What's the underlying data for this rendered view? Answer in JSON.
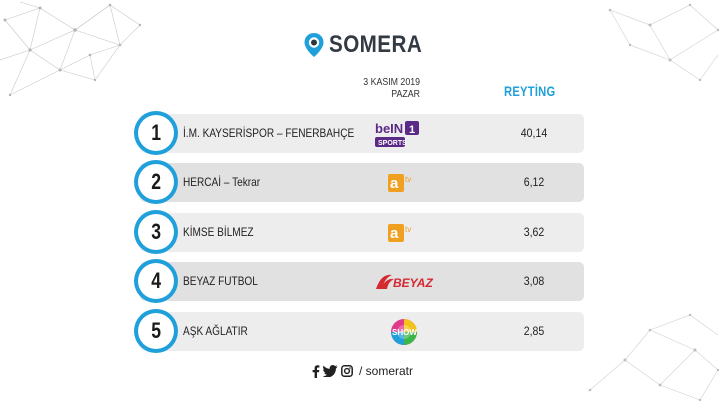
{
  "brand": {
    "name": "SOMERA"
  },
  "date": {
    "line1": "3 KASIM 2019",
    "line2": "PAZAR"
  },
  "rating_header": "REYTİNG",
  "rows": [
    {
      "rank": "1",
      "program": "İ.M. KAYSERİSPOR – FENERBAHÇE",
      "channel": "beIN SPORTS 1",
      "channel_icon": "bein-sports-1-logo-icon",
      "rating": "40,14"
    },
    {
      "rank": "2",
      "program": "HERCAİ – Tekrar",
      "channel": "atv",
      "channel_icon": "atv-logo-icon",
      "rating": "6,12"
    },
    {
      "rank": "3",
      "program": "KİMSE BİLMEZ",
      "channel": "atv",
      "channel_icon": "atv-logo-icon",
      "rating": "3,62"
    },
    {
      "rank": "4",
      "program": "BEYAZ FUTBOL",
      "channel": "BEYAZ",
      "channel_icon": "beyaz-tv-logo-icon",
      "rating": "3,08"
    },
    {
      "rank": "5",
      "program": "AŞK AĞLATIR",
      "channel": "SHOW",
      "channel_icon": "show-tv-logo-icon",
      "rating": "2,85"
    }
  ],
  "footer": {
    "handle": "/ someratr",
    "icons": [
      "facebook-icon",
      "twitter-icon",
      "instagram-icon"
    ]
  },
  "colors": {
    "accent": "#1fa0db",
    "row_light": "#ededee",
    "row_dark": "#e2e1e2",
    "text": "#222222",
    "atv_orange": "#f0a020",
    "bein_purple": "#5b2a86",
    "beyaz_red": "#d6282f"
  }
}
